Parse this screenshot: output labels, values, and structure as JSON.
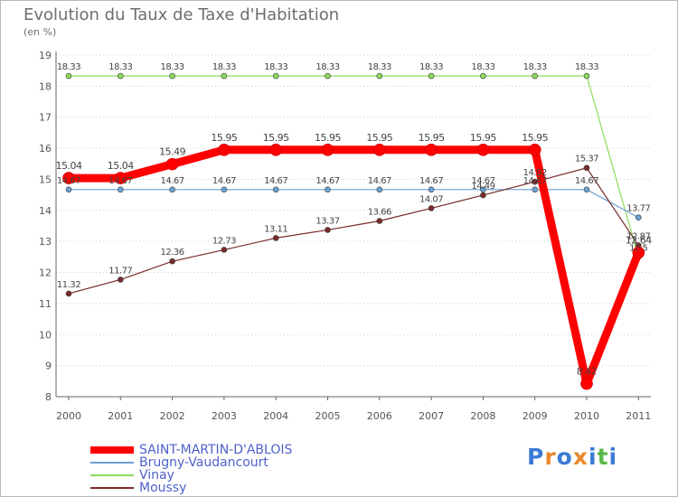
{
  "title": "Evolution du Taux de Taxe d'Habitation",
  "unit_label": "(en %)",
  "logo": {
    "letters": [
      "P",
      "r",
      "o",
      "x",
      "i",
      "t",
      "i"
    ],
    "colors": [
      "#3a7bd5",
      "#e8892b",
      "#3a7bd5",
      "#e8892b",
      "#3a7bd5",
      "#59b847",
      "#3a7bd5"
    ]
  },
  "colors": {
    "axis": "#666666",
    "grid": "#cccccc",
    "label": "#555555"
  },
  "chart_data": {
    "type": "line",
    "title": "Evolution du Taux de Taxe d'Habitation",
    "ylabel": "(en %)",
    "xlabel": "",
    "ylim": [
      8,
      19
    ],
    "yticks": [
      8,
      9,
      10,
      11,
      12,
      13,
      14,
      15,
      16,
      17,
      18,
      19
    ],
    "x": [
      "2000",
      "2001",
      "2002",
      "2003",
      "2004",
      "2005",
      "2006",
      "2007",
      "2008",
      "2009",
      "2010",
      "2011"
    ],
    "legend_position": "bottom-left",
    "series": [
      {
        "name": "SAINT-MARTIN-D'ABLOIS",
        "color": "#ff0000",
        "values": [
          15.04,
          15.04,
          15.49,
          15.95,
          15.95,
          15.95,
          15.95,
          15.95,
          15.95,
          15.95,
          8.42,
          12.64
        ]
      },
      {
        "name": "Brugny-Vaudancourt",
        "color": "#6aa1d2",
        "values": [
          14.67,
          14.67,
          14.67,
          14.67,
          14.67,
          14.67,
          14.67,
          14.67,
          14.67,
          14.67,
          14.67,
          13.77
        ]
      },
      {
        "name": "Vinay",
        "color": "#8ddb5c",
        "values": [
          18.33,
          18.33,
          18.33,
          18.33,
          18.33,
          18.33,
          18.33,
          18.33,
          18.33,
          18.33,
          18.33,
          12.5
        ]
      },
      {
        "name": "Moussy",
        "color": "#7a2a2a",
        "values": [
          11.32,
          11.77,
          12.36,
          12.73,
          13.11,
          13.37,
          13.66,
          14.07,
          14.49,
          14.92,
          15.37,
          12.87
        ]
      }
    ]
  }
}
